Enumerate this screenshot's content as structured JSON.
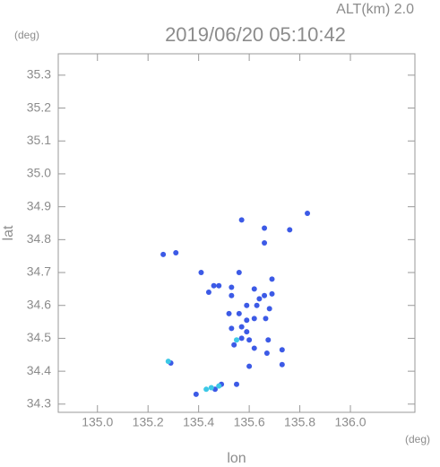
{
  "chart_data": {
    "type": "scatter",
    "title": "2019/06/20 05:10:42",
    "subtitle": "ALT(km) 2.0",
    "xlabel": "lon",
    "ylabel": "lat",
    "xunit": "(deg)",
    "yunit": "(deg)",
    "xlim": [
      134.845,
      136.255
    ],
    "ylim": [
      34.275,
      35.365
    ],
    "xticks": [
      {
        "value": 135,
        "label": "135.0"
      },
      135.2,
      135.4,
      135.6,
      135.8,
      {
        "value": 136,
        "label": "136.0"
      }
    ],
    "yticks": [
      34.3,
      34.4,
      34.5,
      34.6,
      34.7,
      34.8,
      34.9,
      {
        "value": 35,
        "label": "35.0"
      },
      35.1,
      35.2,
      35.3
    ],
    "grid": false,
    "series": [
      {
        "color": "#3c5ae6",
        "x": [
          135.83,
          135.26,
          135.31,
          135.57,
          135.66,
          135.66,
          135.76,
          135.41,
          135.46,
          135.44,
          135.48,
          135.56,
          135.69,
          135.69,
          135.66,
          135.64,
          135.62,
          135.53,
          135.53,
          135.59,
          135.63,
          135.68,
          135.56,
          135.52,
          135.59,
          135.62,
          135.665,
          135.57,
          135.59,
          135.6,
          135.57,
          135.675,
          135.73,
          135.67,
          135.62,
          135.6,
          135.73,
          135.29,
          135.53,
          135.54,
          135.39,
          135.49,
          135.55,
          135.465
        ],
        "y": [
          34.88,
          34.755,
          34.76,
          34.86,
          34.835,
          34.79,
          34.83,
          34.7,
          34.66,
          34.64,
          34.66,
          34.7,
          34.68,
          34.635,
          34.63,
          34.62,
          34.65,
          34.655,
          34.63,
          34.6,
          34.6,
          34.59,
          34.575,
          34.575,
          34.555,
          34.56,
          34.56,
          34.535,
          34.52,
          34.495,
          34.5,
          34.495,
          34.465,
          34.455,
          34.47,
          34.415,
          34.42,
          34.425,
          34.53,
          34.48,
          34.33,
          34.36,
          34.36,
          34.345
        ]
      },
      {
        "color": "#3cc8e6",
        "x": [
          135.28,
          135.55,
          135.43,
          135.45,
          135.48
        ],
        "y": [
          34.43,
          34.495,
          34.345,
          34.35,
          34.355
        ]
      }
    ]
  }
}
